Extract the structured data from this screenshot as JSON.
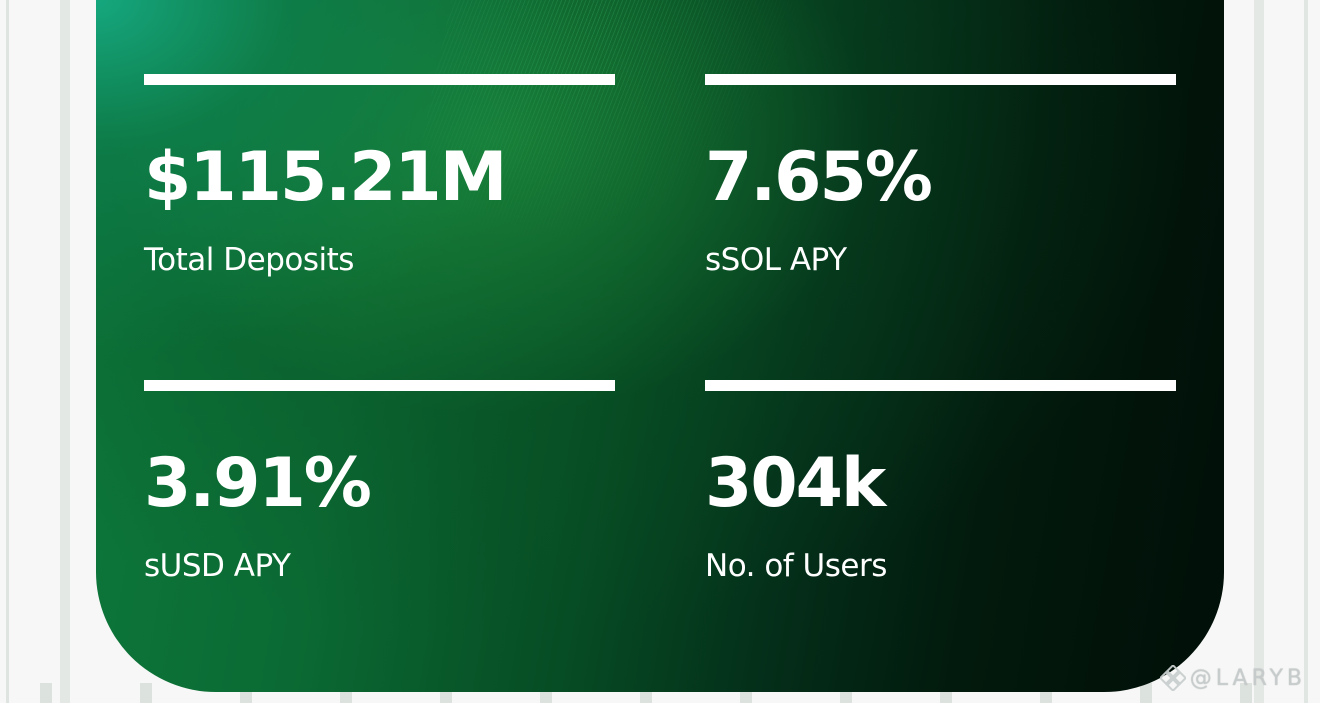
{
  "stats": [
    {
      "value": "$115.21M",
      "label": "Total Deposits"
    },
    {
      "value": "7.65%",
      "label": "sSOL APY"
    },
    {
      "value": "3.91%",
      "label": "sUSD APY"
    },
    {
      "value": "304k",
      "label": "No. of Users"
    }
  ],
  "watermark": {
    "text": "@LARYB",
    "icon": "binance-diamond-icon"
  },
  "colors": {
    "card_green_light": "#16aa82",
    "card_green_mid": "#0b6a33",
    "card_dark": "#010f08",
    "text": "#ffffff",
    "background": "#f6f7f6"
  }
}
